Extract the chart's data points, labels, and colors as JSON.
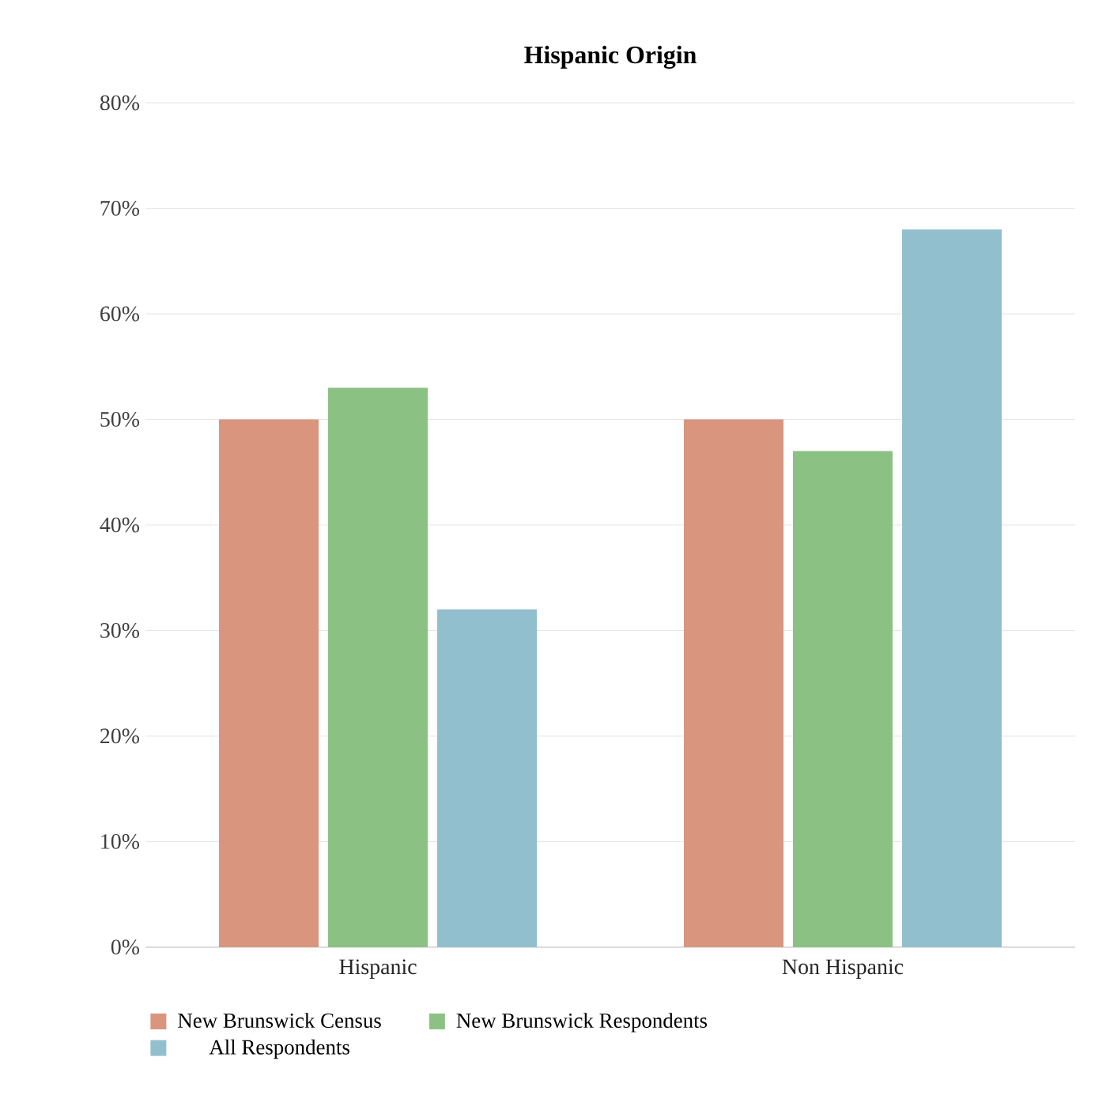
{
  "chart_data": {
    "type": "bar",
    "title": "Hispanic Origin",
    "categories": [
      "Hispanic",
      "Non Hispanic"
    ],
    "series": [
      {
        "name": "New Brunswick Census",
        "color": "#d9957e",
        "values": [
          50,
          50
        ]
      },
      {
        "name": "New Brunswick Respondents",
        "color": "#8bc283",
        "values": [
          53,
          47
        ]
      },
      {
        "name": "All Respondents",
        "color": "#92bfce",
        "values": [
          32,
          68
        ]
      }
    ],
    "ylim": [
      0,
      80
    ],
    "yticks": [
      {
        "value": 0,
        "label": "0%"
      },
      {
        "value": 10,
        "label": "10%"
      },
      {
        "value": 20,
        "label": "20%"
      },
      {
        "value": 30,
        "label": "30%"
      },
      {
        "value": 40,
        "label": "40%"
      },
      {
        "value": 50,
        "label": "50%"
      },
      {
        "value": 60,
        "label": "60%"
      },
      {
        "value": 70,
        "label": "70%"
      },
      {
        "value": 80,
        "label": "80%"
      }
    ],
    "grid": "y",
    "legend": "bottom"
  }
}
